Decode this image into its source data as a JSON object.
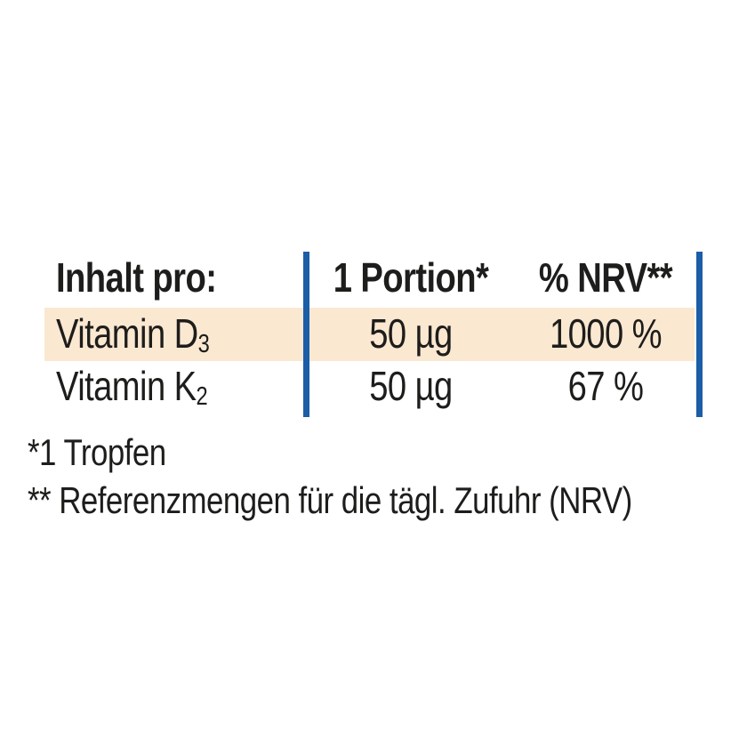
{
  "table": {
    "header": {
      "col1": "Inhalt pro:",
      "col2": "1 Portion*",
      "col3": "% NRV**"
    },
    "rows": [
      {
        "label_base": "Vitamin D",
        "label_sub": "3",
        "portion": "50 µg",
        "nrv": "1000 %",
        "highlighted": true
      },
      {
        "label_base": "Vitamin K",
        "label_sub": "2",
        "portion": "50 µg",
        "nrv": "67 %",
        "highlighted": false
      }
    ]
  },
  "footnotes": {
    "note1": "*1 Tropfen",
    "note2": "** Referenzmengen für die tägl. Zufuhr (NRV)"
  },
  "colors": {
    "divider_blue": "#1b5da7",
    "row_highlight": "#fbe8d1",
    "text": "#1d1d1b",
    "background": "#ffffff"
  }
}
